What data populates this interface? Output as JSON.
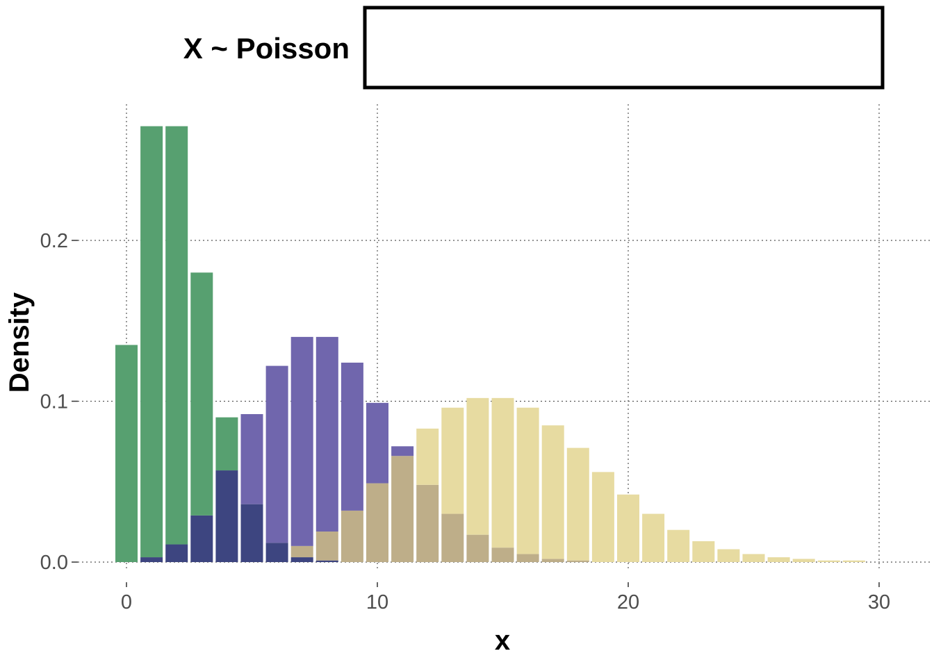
{
  "chart_data": {
    "type": "bar",
    "legend": {
      "title": "X ~ Poisson",
      "entries": [],
      "placement": "top"
    },
    "xlabel": "x",
    "ylabel": "Density",
    "xlim": [
      -1,
      31
    ],
    "ylim": [
      -0.012,
      0.285
    ],
    "x_ticks": [
      0,
      10,
      20,
      30
    ],
    "x_tick_labels": [
      "0",
      "10",
      "20",
      "30"
    ],
    "y_ticks": [
      0.0,
      0.1,
      0.2
    ],
    "y_tick_labels": [
      "0.0",
      "0.1",
      "0.2"
    ],
    "grid": true,
    "colors": {
      "series_1": "#57a070",
      "series_2": "#7066ad",
      "series_3": "#e7dba1",
      "overlap_1_2": "#3d4580",
      "overlap_2_3": "#beae89",
      "bar_gap": "#ffffff"
    },
    "x": [
      0,
      1,
      2,
      3,
      4,
      5,
      6,
      7,
      8,
      9,
      10,
      11,
      12,
      13,
      14,
      15,
      16,
      17,
      18,
      19,
      20,
      21,
      22,
      23,
      24,
      25,
      26,
      27,
      28,
      29,
      30
    ],
    "series": [
      {
        "values": [
          0.135,
          0.271,
          0.271,
          0.18,
          0.09,
          0.036,
          0.012,
          0.003,
          0.001,
          0.0,
          0.0,
          0,
          0,
          0,
          0,
          0,
          0,
          0,
          0,
          0,
          0,
          0,
          0,
          0,
          0,
          0,
          0,
          0,
          0,
          0,
          0
        ]
      },
      {
        "values": [
          0.0,
          0.003,
          0.011,
          0.029,
          0.057,
          0.092,
          0.122,
          0.14,
          0.14,
          0.124,
          0.099,
          0.072,
          0.048,
          0.03,
          0.017,
          0.009,
          0.005,
          0.002,
          0.001,
          0.0,
          0.0,
          0,
          0,
          0,
          0,
          0,
          0,
          0,
          0,
          0,
          0
        ]
      },
      {
        "values": [
          0.0,
          0.0,
          0.0,
          0.0,
          0.001,
          0.002,
          0.005,
          0.01,
          0.019,
          0.032,
          0.049,
          0.066,
          0.083,
          0.096,
          0.102,
          0.102,
          0.096,
          0.085,
          0.071,
          0.056,
          0.042,
          0.03,
          0.02,
          0.013,
          0.008,
          0.005,
          0.003,
          0.002,
          0.001,
          0.001,
          0.0
        ]
      }
    ]
  }
}
